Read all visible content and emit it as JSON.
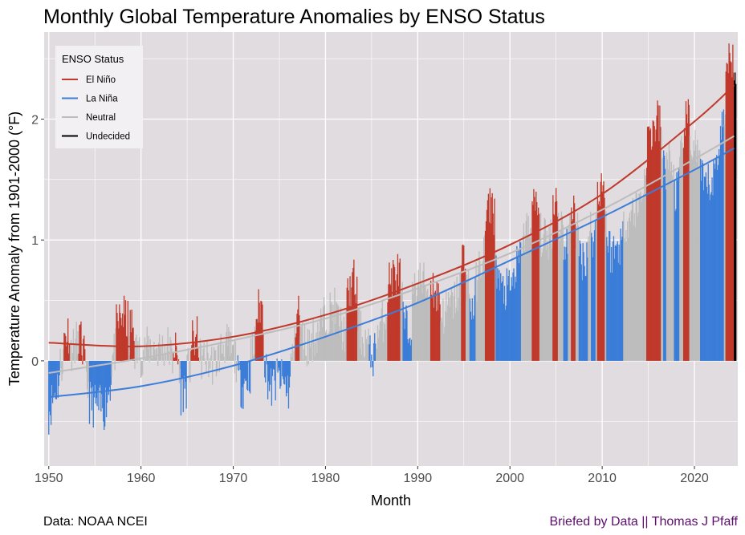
{
  "chart_data": {
    "type": "bar",
    "title": "Monthly Global Temperature Anomalies by ENSO Status",
    "xlabel": "Month",
    "ylabel": "Temperature Anomaly from 1901-2000  (°F)",
    "xlim": [
      1949.5,
      2024.7
    ],
    "ylim": [
      -0.87,
      2.72
    ],
    "x_ticks": [
      1950,
      1960,
      1970,
      1980,
      1990,
      2000,
      2010,
      2020
    ],
    "y_ticks": [
      0,
      1,
      2
    ],
    "grid": true,
    "legend": {
      "title": "ENSO Status",
      "position": "top-left",
      "entries": [
        {
          "label": "El Niño",
          "color": "#c0392b"
        },
        {
          "label": "La Niña",
          "color": "#3b7dd8"
        },
        {
          "label": "Neutral",
          "color": "#bdbdbd"
        },
        {
          "label": "Undecided",
          "color": "#000000"
        }
      ]
    },
    "colors": {
      "el_nino": "#c0392b",
      "la_nina": "#3b7dd8",
      "neutral": "#bdbdbd",
      "undecided": "#000000",
      "panel": "#e0dcdf",
      "grid": "#ffffff"
    },
    "annual_anomaly": [
      [
        1950,
        -0.3
      ],
      [
        1951,
        -0.05
      ],
      [
        1952,
        0.05
      ],
      [
        1953,
        0.15
      ],
      [
        1954,
        -0.2
      ],
      [
        1955,
        -0.25
      ],
      [
        1956,
        -0.28
      ],
      [
        1957,
        0.05
      ],
      [
        1958,
        0.2
      ],
      [
        1959,
        0.1
      ],
      [
        1960,
        0.05
      ],
      [
        1961,
        0.12
      ],
      [
        1962,
        0.1
      ],
      [
        1963,
        0.12
      ],
      [
        1964,
        -0.18
      ],
      [
        1965,
        -0.08
      ],
      [
        1966,
        0.0
      ],
      [
        1967,
        0.02
      ],
      [
        1968,
        -0.03
      ],
      [
        1969,
        0.15
      ],
      [
        1970,
        0.06
      ],
      [
        1971,
        -0.1
      ],
      [
        1972,
        0.05
      ],
      [
        1973,
        0.3
      ],
      [
        1974,
        -0.12
      ],
      [
        1975,
        -0.02
      ],
      [
        1976,
        -0.12
      ],
      [
        1977,
        0.25
      ],
      [
        1978,
        0.12
      ],
      [
        1979,
        0.22
      ],
      [
        1980,
        0.38
      ],
      [
        1981,
        0.42
      ],
      [
        1982,
        0.22
      ],
      [
        1983,
        0.5
      ],
      [
        1984,
        0.18
      ],
      [
        1985,
        0.15
      ],
      [
        1986,
        0.28
      ],
      [
        1987,
        0.5
      ],
      [
        1988,
        0.55
      ],
      [
        1989,
        0.35
      ],
      [
        1990,
        0.68
      ],
      [
        1991,
        0.62
      ],
      [
        1992,
        0.35
      ],
      [
        1993,
        0.4
      ],
      [
        1994,
        0.5
      ],
      [
        1995,
        0.7
      ],
      [
        1996,
        0.55
      ],
      [
        1997,
        0.85
      ],
      [
        1998,
        1.15
      ],
      [
        1999,
        0.7
      ],
      [
        2000,
        0.7
      ],
      [
        2001,
        0.95
      ],
      [
        2002,
        1.1
      ],
      [
        2003,
        1.08
      ],
      [
        2004,
        0.98
      ],
      [
        2005,
        1.18
      ],
      [
        2006,
        1.08
      ],
      [
        2007,
        1.1
      ],
      [
        2008,
        0.95
      ],
      [
        2009,
        1.15
      ],
      [
        2010,
        1.3
      ],
      [
        2011,
        1.0
      ],
      [
        2012,
        1.1
      ],
      [
        2013,
        1.2
      ],
      [
        2014,
        1.3
      ],
      [
        2015,
        1.65
      ],
      [
        2016,
        1.8
      ],
      [
        2017,
        1.7
      ],
      [
        2018,
        1.5
      ],
      [
        2019,
        1.8
      ],
      [
        2020,
        1.8
      ],
      [
        2021,
        1.55
      ],
      [
        2022,
        1.6
      ],
      [
        2023,
        2.05
      ],
      [
        2024,
        2.35
      ]
    ],
    "enso_periods": [
      {
        "status": "la_nina",
        "start": 1950.0,
        "end": 1951.2
      },
      {
        "status": "el_nino",
        "start": 1951.6,
        "end": 1952.3
      },
      {
        "status": "el_nino",
        "start": 1953.2,
        "end": 1954.0
      },
      {
        "status": "la_nina",
        "start": 1954.4,
        "end": 1956.8
      },
      {
        "status": "el_nino",
        "start": 1957.3,
        "end": 1958.6
      },
      {
        "status": "el_nino",
        "start": 1958.8,
        "end": 1959.3
      },
      {
        "status": "el_nino",
        "start": 1963.5,
        "end": 1964.1
      },
      {
        "status": "la_nina",
        "start": 1964.3,
        "end": 1965.0
      },
      {
        "status": "el_nino",
        "start": 1965.4,
        "end": 1966.3
      },
      {
        "status": "la_nina",
        "start": 1970.5,
        "end": 1971.9
      },
      {
        "status": "el_nino",
        "start": 1972.4,
        "end": 1973.3
      },
      {
        "status": "la_nina",
        "start": 1973.4,
        "end": 1974.6
      },
      {
        "status": "la_nina",
        "start": 1974.7,
        "end": 1976.2
      },
      {
        "status": "el_nino",
        "start": 1976.7,
        "end": 1977.2
      },
      {
        "status": "el_nino",
        "start": 1982.3,
        "end": 1983.5
      },
      {
        "status": "la_nina",
        "start": 1984.7,
        "end": 1985.5
      },
      {
        "status": "el_nino",
        "start": 1986.7,
        "end": 1988.1
      },
      {
        "status": "la_nina",
        "start": 1988.4,
        "end": 1989.4
      },
      {
        "status": "el_nino",
        "start": 1991.4,
        "end": 1992.5
      },
      {
        "status": "el_nino",
        "start": 1994.7,
        "end": 1995.2
      },
      {
        "status": "la_nina",
        "start": 1995.6,
        "end": 1996.3
      },
      {
        "status": "el_nino",
        "start": 1997.3,
        "end": 1998.4
      },
      {
        "status": "la_nina",
        "start": 1998.5,
        "end": 2001.2
      },
      {
        "status": "el_nino",
        "start": 2002.4,
        "end": 2003.2
      },
      {
        "status": "el_nino",
        "start": 2004.6,
        "end": 2005.2
      },
      {
        "status": "la_nina",
        "start": 2005.8,
        "end": 2006.3
      },
      {
        "status": "el_nino",
        "start": 2006.6,
        "end": 2007.1
      },
      {
        "status": "la_nina",
        "start": 2007.5,
        "end": 2008.5
      },
      {
        "status": "la_nina",
        "start": 2008.8,
        "end": 2009.3
      },
      {
        "status": "el_nino",
        "start": 2009.5,
        "end": 2010.3
      },
      {
        "status": "la_nina",
        "start": 2010.5,
        "end": 2012.3
      },
      {
        "status": "el_nino",
        "start": 2014.8,
        "end": 2016.4
      },
      {
        "status": "la_nina",
        "start": 2016.6,
        "end": 2017.0
      },
      {
        "status": "la_nina",
        "start": 2017.8,
        "end": 2018.4
      },
      {
        "status": "el_nino",
        "start": 2018.8,
        "end": 2019.5
      },
      {
        "status": "la_nina",
        "start": 2020.6,
        "end": 2023.2
      },
      {
        "status": "el_nino",
        "start": 2023.4,
        "end": 2024.3
      },
      {
        "status": "undecided",
        "start": 2024.3,
        "end": 2024.6
      }
    ],
    "series": [
      {
        "name": "El Niño",
        "key": "el_nino",
        "x": [
          1950,
          1960,
          1970,
          1980,
          1990,
          2000,
          2010,
          2020,
          2024.3
        ],
        "y": [
          0.15,
          0.12,
          0.2,
          0.38,
          0.64,
          0.96,
          1.38,
          1.98,
          2.28
        ]
      },
      {
        "name": "La Niña",
        "key": "la_nina",
        "x": [
          1950,
          1960,
          1970,
          1980,
          1990,
          2000,
          2010,
          2020,
          2024.3
        ],
        "y": [
          -0.3,
          -0.21,
          -0.04,
          0.2,
          0.48,
          0.83,
          1.19,
          1.58,
          1.76
        ]
      },
      {
        "name": "Neutral",
        "key": "neutral",
        "x": [
          1950,
          1960,
          1970,
          1980,
          1990,
          2000,
          2010,
          2020,
          2024.3
        ],
        "y": [
          -0.1,
          0.02,
          0.17,
          0.35,
          0.6,
          0.89,
          1.25,
          1.67,
          1.86
        ]
      }
    ]
  },
  "caption": {
    "source": "Data: NOAA NCEI",
    "credit": "Briefed by Data || Thomas J Pfaff"
  }
}
